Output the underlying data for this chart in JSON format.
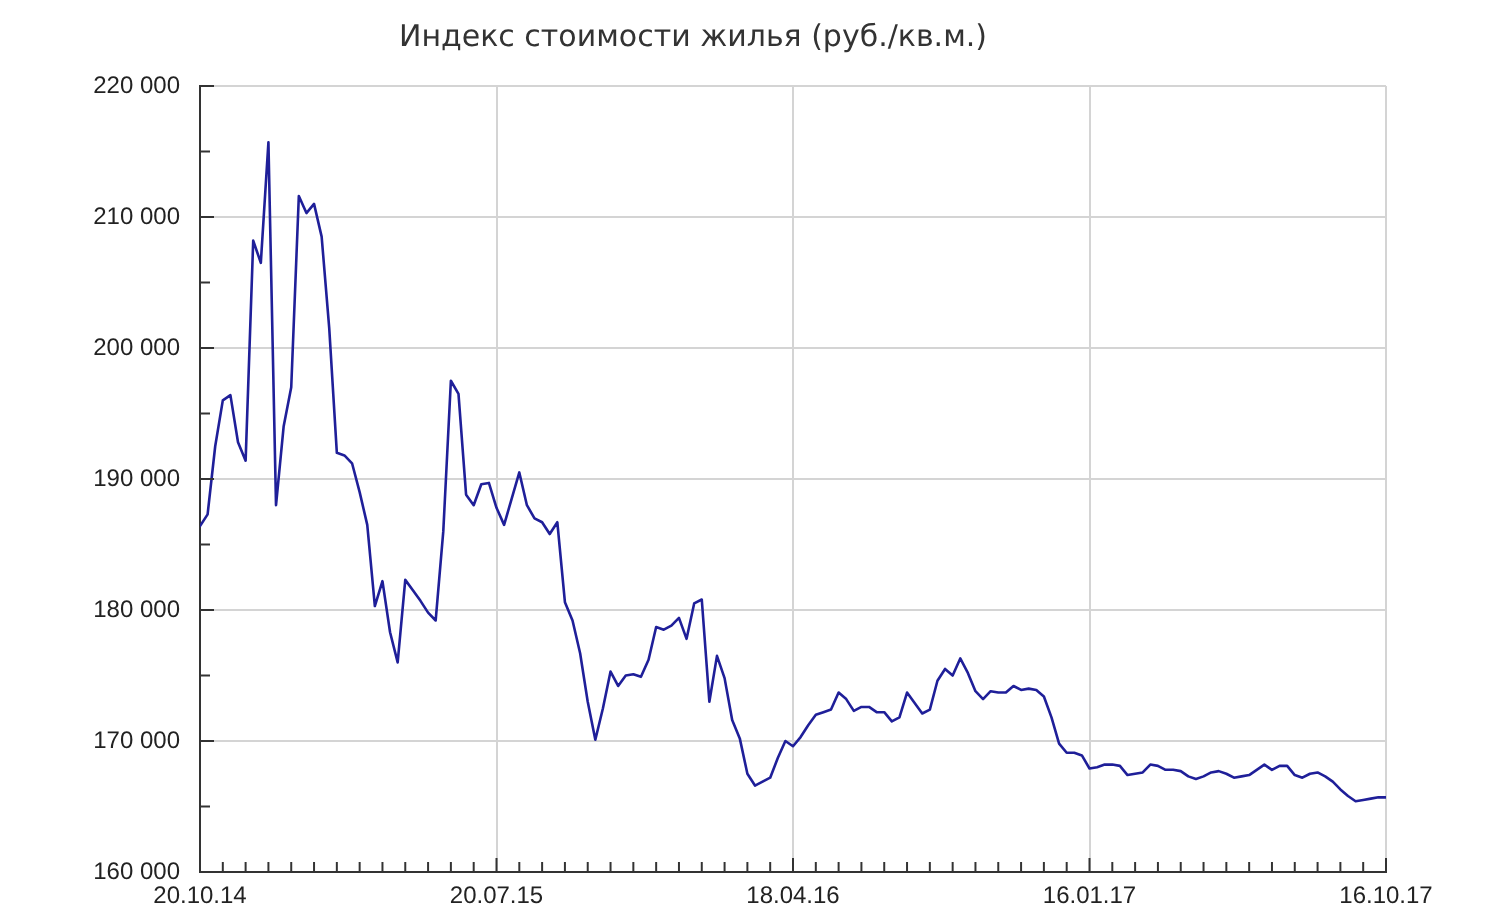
{
  "chart_data": {
    "type": "line",
    "title": "Индекс стоимости жилья (руб./кв.м.)",
    "x": [
      "2014-10-20",
      "2014-10-27",
      "2014-11-03",
      "2014-11-10",
      "2014-11-17",
      "2014-11-24",
      "2014-12-01",
      "2014-12-08",
      "2014-12-15",
      "2014-12-22",
      "2014-12-29",
      "2015-01-05",
      "2015-01-12",
      "2015-01-19",
      "2015-01-26",
      "2015-02-02",
      "2015-02-09",
      "2015-02-16",
      "2015-02-23",
      "2015-03-02",
      "2015-03-09",
      "2015-03-16",
      "2015-03-23",
      "2015-03-30",
      "2015-04-06",
      "2015-04-13",
      "2015-04-20",
      "2015-04-27",
      "2015-05-04",
      "2015-05-11",
      "2015-05-18",
      "2015-05-25",
      "2015-06-01",
      "2015-06-08",
      "2015-06-15",
      "2015-06-22",
      "2015-06-29",
      "2015-07-06",
      "2015-07-13",
      "2015-07-20",
      "2015-07-27",
      "2015-08-03",
      "2015-08-10",
      "2015-08-17",
      "2015-08-24",
      "2015-08-31",
      "2015-09-07",
      "2015-09-14",
      "2015-09-21",
      "2015-09-28",
      "2015-10-05",
      "2015-10-12",
      "2015-10-19",
      "2015-10-26",
      "2015-11-02",
      "2015-11-09",
      "2015-11-16",
      "2015-11-23",
      "2015-11-30",
      "2015-12-07",
      "2015-12-14",
      "2015-12-21",
      "2015-12-28",
      "2016-01-04",
      "2016-01-11",
      "2016-01-18",
      "2016-01-25",
      "2016-02-01",
      "2016-02-08",
      "2016-02-15",
      "2016-02-22",
      "2016-02-29",
      "2016-03-07",
      "2016-03-14",
      "2016-03-21",
      "2016-03-28",
      "2016-04-04",
      "2016-04-11",
      "2016-04-18",
      "2016-04-25",
      "2016-05-02",
      "2016-05-09",
      "2016-05-16",
      "2016-05-23",
      "2016-05-30",
      "2016-06-06",
      "2016-06-13",
      "2016-06-20",
      "2016-06-27",
      "2016-07-04",
      "2016-07-11",
      "2016-07-18",
      "2016-07-25",
      "2016-08-01",
      "2016-08-08",
      "2016-08-15",
      "2016-08-22",
      "2016-08-29",
      "2016-09-05",
      "2016-09-12",
      "2016-09-19",
      "2016-09-26",
      "2016-10-03",
      "2016-10-10",
      "2016-10-17",
      "2016-10-24",
      "2016-10-31",
      "2016-11-07",
      "2016-11-14",
      "2016-11-21",
      "2016-11-28",
      "2016-12-05",
      "2016-12-12",
      "2016-12-19",
      "2016-12-26",
      "2017-01-02",
      "2017-01-09",
      "2017-01-16",
      "2017-01-23",
      "2017-01-30",
      "2017-02-06",
      "2017-02-13",
      "2017-02-20",
      "2017-02-27",
      "2017-03-06",
      "2017-03-13",
      "2017-03-20",
      "2017-03-27",
      "2017-04-03",
      "2017-04-10",
      "2017-04-17",
      "2017-04-24",
      "2017-05-01",
      "2017-05-08",
      "2017-05-15",
      "2017-05-22",
      "2017-05-29",
      "2017-06-05",
      "2017-06-12",
      "2017-06-19",
      "2017-06-26",
      "2017-07-03",
      "2017-07-10",
      "2017-07-17",
      "2017-07-24",
      "2017-07-31",
      "2017-08-07",
      "2017-08-14",
      "2017-08-21",
      "2017-08-28",
      "2017-09-04",
      "2017-09-11",
      "2017-09-18",
      "2017-09-25",
      "2017-10-02",
      "2017-10-09",
      "2017-10-16"
    ],
    "values": [
      186400,
      187300,
      192500,
      196000,
      196400,
      192800,
      191400,
      208200,
      206500,
      215700,
      188000,
      194000,
      197000,
      211600,
      210300,
      211000,
      208500,
      201500,
      192000,
      191800,
      191200,
      189000,
      186500,
      180300,
      182200,
      178300,
      176000,
      182300,
      181500,
      180700,
      179800,
      179200,
      186000,
      197500,
      196500,
      188800,
      188000,
      189600,
      189700,
      187800,
      186500,
      188500,
      190500,
      188000,
      187000,
      186700,
      185800,
      186700,
      180600,
      179200,
      176700,
      173000,
      170100,
      172500,
      175300,
      174200,
      175000,
      175100,
      174900,
      176200,
      178700,
      178500,
      178800,
      179400,
      177800,
      180500,
      180800,
      173000,
      176500,
      174800,
      171600,
      170200,
      167500,
      166600,
      166900,
      167200,
      168700,
      170000,
      169600,
      170300,
      171200,
      172000,
      172200,
      172400,
      173700,
      173200,
      172300,
      172600,
      172600,
      172200,
      172200,
      171500,
      171800,
      173700,
      172900,
      172100,
      172400,
      174600,
      175500,
      175000,
      176300,
      175200,
      173800,
      173200,
      173800,
      173700,
      173700,
      174200,
      173900,
      174000,
      173900,
      173400,
      171800,
      169800,
      169100,
      169100,
      168900,
      167900,
      168000,
      168200,
      168200,
      168100,
      167400,
      167500,
      167600,
      168200,
      168100,
      167800,
      167800,
      167700,
      167300,
      167100,
      167300,
      167600,
      167700,
      167500,
      167200,
      167300,
      167400,
      167800,
      168200,
      167800,
      168100,
      168100,
      167400,
      167200,
      167500,
      167600,
      167300,
      166900,
      166300,
      165800,
      165400,
      165500,
      165600,
      165700,
      165700
    ],
    "color": "#1f1f99",
    "xlim": [
      "2014-10-20",
      "2017-10-16"
    ],
    "xticks": [
      {
        "value": "2014-10-20",
        "label": "20.10.14"
      },
      {
        "value": "2014-11-10",
        "label": null
      },
      {
        "value": "2014-12-01",
        "label": null
      },
      {
        "value": "2014-12-22",
        "label": null
      },
      {
        "value": "2015-01-12",
        "label": null
      },
      {
        "value": "2015-02-02",
        "label": null
      },
      {
        "value": "2015-02-23",
        "label": null
      },
      {
        "value": "2015-03-16",
        "label": null
      },
      {
        "value": "2015-04-06",
        "label": null
      },
      {
        "value": "2015-04-27",
        "label": null
      },
      {
        "value": "2015-05-18",
        "label": null
      },
      {
        "value": "2015-06-08",
        "label": null
      },
      {
        "value": "2015-06-29",
        "label": null
      },
      {
        "value": "2015-07-20",
        "label": "20.07.15"
      },
      {
        "value": "2015-08-10",
        "label": null
      },
      {
        "value": "2015-08-31",
        "label": null
      },
      {
        "value": "2015-09-21",
        "label": null
      },
      {
        "value": "2015-10-12",
        "label": null
      },
      {
        "value": "2015-11-02",
        "label": null
      },
      {
        "value": "2015-11-23",
        "label": null
      },
      {
        "value": "2015-12-14",
        "label": null
      },
      {
        "value": "2016-01-04",
        "label": null
      },
      {
        "value": "2016-01-25",
        "label": null
      },
      {
        "value": "2016-02-15",
        "label": null
      },
      {
        "value": "2016-03-07",
        "label": null
      },
      {
        "value": "2016-03-28",
        "label": null
      },
      {
        "value": "2016-04-18",
        "label": "18.04.16"
      },
      {
        "value": "2016-05-09",
        "label": null
      },
      {
        "value": "2016-05-30",
        "label": null
      },
      {
        "value": "2016-06-20",
        "label": null
      },
      {
        "value": "2016-07-11",
        "label": null
      },
      {
        "value": "2016-08-01",
        "label": null
      },
      {
        "value": "2016-08-22",
        "label": null
      },
      {
        "value": "2016-09-12",
        "label": null
      },
      {
        "value": "2016-10-03",
        "label": null
      },
      {
        "value": "2016-10-24",
        "label": null
      },
      {
        "value": "2016-11-14",
        "label": null
      },
      {
        "value": "2016-12-05",
        "label": null
      },
      {
        "value": "2016-12-26",
        "label": null
      },
      {
        "value": "2017-01-16",
        "label": "16.01.17"
      },
      {
        "value": "2017-02-06",
        "label": null
      },
      {
        "value": "2017-02-27",
        "label": null
      },
      {
        "value": "2017-03-20",
        "label": null
      },
      {
        "value": "2017-04-10",
        "label": null
      },
      {
        "value": "2017-05-01",
        "label": null
      },
      {
        "value": "2017-05-22",
        "label": null
      },
      {
        "value": "2017-06-12",
        "label": null
      },
      {
        "value": "2017-07-03",
        "label": null
      },
      {
        "value": "2017-07-24",
        "label": null
      },
      {
        "value": "2017-08-14",
        "label": null
      },
      {
        "value": "2017-09-04",
        "label": null
      },
      {
        "value": "2017-09-25",
        "label": null
      },
      {
        "value": "2017-10-16",
        "label": "16.10.17"
      }
    ],
    "ylim": [
      160000,
      220000
    ],
    "yticks": [
      {
        "value": 160000,
        "label": "160 000"
      },
      {
        "value": 165000,
        "label": null
      },
      {
        "value": 170000,
        "label": "170 000"
      },
      {
        "value": 175000,
        "label": null
      },
      {
        "value": 180000,
        "label": "180 000"
      },
      {
        "value": 185000,
        "label": null
      },
      {
        "value": 190000,
        "label": "190 000"
      },
      {
        "value": 195000,
        "label": null
      },
      {
        "value": 200000,
        "label": "200 000"
      },
      {
        "value": 205000,
        "label": null
      },
      {
        "value": 210000,
        "label": "210 000"
      },
      {
        "value": 215000,
        "label": null
      },
      {
        "value": 220000,
        "label": "220 000"
      }
    ],
    "grid": true
  }
}
